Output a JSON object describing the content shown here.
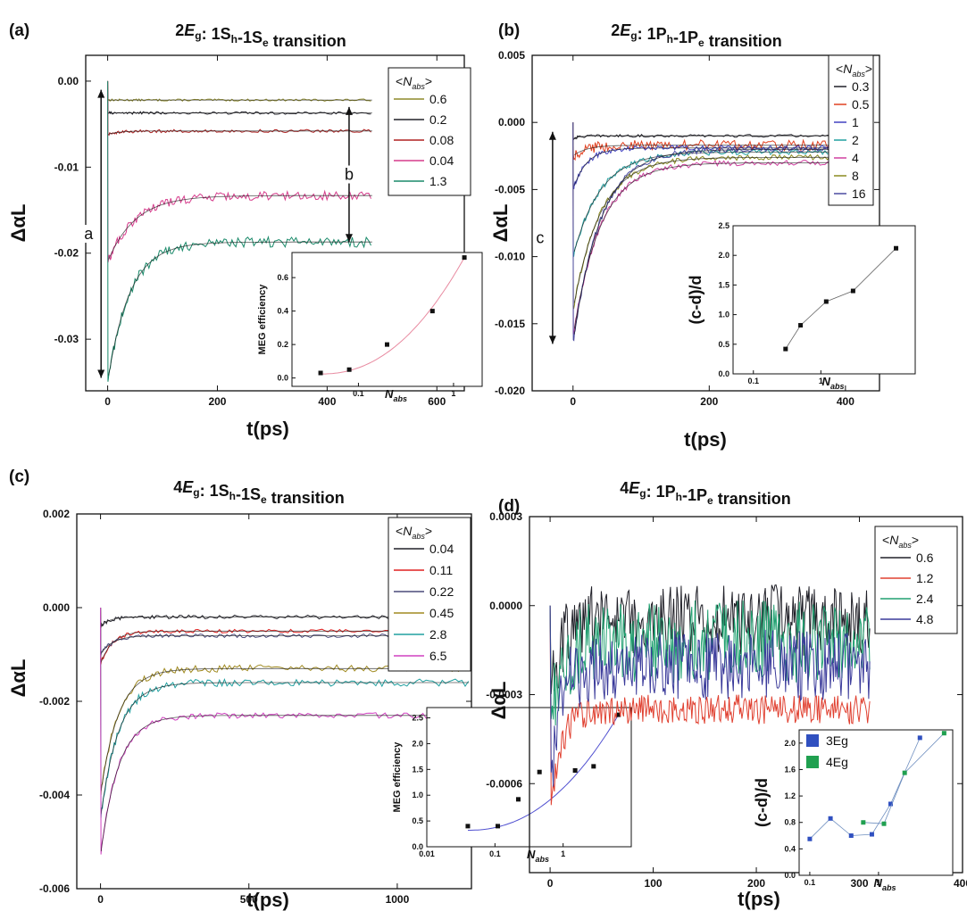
{
  "chart_data": [
    {
      "type": "line",
      "panel_label": "(a)",
      "title": {
        "pre": "2",
        "italic": "E",
        "sub": "g",
        "rest": ": 1S",
        "sub2": "h",
        "rest2": "-1S",
        "sub3": "e",
        "rest3": " transition"
      },
      "xlabel": "t(ps)",
      "ylabel": "ΔαL",
      "xlim": [
        -40,
        650
      ],
      "ylim": [
        -0.036,
        0.003
      ],
      "xticks": [
        0,
        200,
        400,
        600
      ],
      "xtick_labels": [
        "0",
        "200",
        "400",
        "600"
      ],
      "yticks": [
        0.0,
        -0.01,
        -0.02,
        -0.03
      ],
      "ytick_labels": [
        "0.00",
        "-0.01",
        "-0.02",
        "-0.03"
      ],
      "legend_title": "<N_abs>",
      "legend_loc": "top-right",
      "series": [
        {
          "name": "0.6",
          "color": "#8d8a2a",
          "initial": -0.0022,
          "plateau": -0.0022,
          "tau": 20,
          "noise": 0.00012,
          "tmax": 480
        },
        {
          "name": "0.2",
          "color": "#202028",
          "initial": -0.0037,
          "plateau": -0.0037,
          "tau": 20,
          "noise": 0.00015,
          "tmax": 480
        },
        {
          "name": "0.08",
          "color": "#b02020",
          "initial": -0.0062,
          "plateau": -0.0058,
          "tau": 20,
          "noise": 0.00018,
          "tmax": 480
        },
        {
          "name": "0.04",
          "color": "#d63c8c",
          "initial": -0.021,
          "plateau": -0.0133,
          "tau": 50,
          "noise": 0.0005,
          "tmax": 480
        },
        {
          "name": "1.3",
          "color": "#1a8a6a",
          "initial": -0.035,
          "plateau": -0.0187,
          "tau": 40,
          "noise": 0.0006,
          "tmax": 480
        }
      ],
      "annotations": [
        {
          "text": "a",
          "from": -0.001,
          "to": -0.0345,
          "xval": -12
        },
        {
          "text": "b",
          "from": -0.003,
          "to": -0.0187,
          "xval": 440
        }
      ],
      "inset": {
        "ylabel": "MEG efficiency",
        "xlabel": "N_abs",
        "xscale": "log",
        "xlim": [
          0.02,
          2
        ],
        "ylim": [
          -0.05,
          0.75
        ],
        "xticks": [
          0.1,
          1
        ],
        "xtick_labels": [
          "0.1",
          "1"
        ],
        "yticks": [
          0.0,
          0.2,
          0.4,
          0.6
        ],
        "ytick_labels": [
          "0.0",
          "0.2",
          "0.4",
          "0.6"
        ],
        "points": [
          [
            0.04,
            0.03
          ],
          [
            0.08,
            0.05
          ],
          [
            0.2,
            0.2
          ],
          [
            0.6,
            0.4
          ],
          [
            1.3,
            0.72
          ]
        ],
        "fit_color": "#e88aa0"
      }
    },
    {
      "type": "line",
      "panel_label": "(b)",
      "title": {
        "pre": "2",
        "italic": "E",
        "sub": "g",
        "rest": ": 1P",
        "sub2": "h",
        "rest2": "-1P",
        "sub3": "e",
        "rest3": " transition"
      },
      "xlabel": "t(ps)",
      "ylabel": "ΔαL",
      "xlim": [
        -60,
        450
      ],
      "ylim": [
        -0.02,
        0.005
      ],
      "xticks": [
        0,
        200,
        400
      ],
      "xtick_labels": [
        "0",
        "200",
        "400"
      ],
      "yticks": [
        0.005,
        0.0,
        -0.005,
        -0.01,
        -0.015,
        -0.02
      ],
      "ytick_labels": [
        "0.005",
        "0.000",
        "-0.005",
        "-0.010",
        "-0.015",
        "-0.020"
      ],
      "legend_title": "<N_abs>",
      "legend_loc": "top-right",
      "series": [
        {
          "name": "0.3",
          "color": "#202028",
          "initial": -0.0012,
          "plateau": -0.001,
          "tau": 10,
          "noise": 0.0001,
          "tmax": 410
        },
        {
          "name": "0.5",
          "color": "#e04020",
          "initial": -0.0025,
          "plateau": -0.0017,
          "tau": 20,
          "noise": 0.0004,
          "tmax": 410
        },
        {
          "name": "1",
          "color": "#4040c0",
          "initial": -0.005,
          "plateau": -0.0019,
          "tau": 20,
          "noise": 0.0002,
          "tmax": 410
        },
        {
          "name": "2",
          "color": "#20a0a0",
          "initial": -0.01,
          "plateau": -0.0022,
          "tau": 40,
          "noise": 0.0002,
          "tmax": 410
        },
        {
          "name": "4",
          "color": "#d040a0",
          "initial": -0.016,
          "plateau": -0.003,
          "tau": 40,
          "noise": 0.0002,
          "tmax": 410
        },
        {
          "name": "8",
          "color": "#8a8a20",
          "initial": -0.014,
          "plateau": -0.0026,
          "tau": 40,
          "noise": 0.0002,
          "tmax": 410
        },
        {
          "name": "16",
          "color": "#4a4aa0",
          "initial": -0.0165,
          "plateau": -0.002,
          "tau": 40,
          "noise": 0.0002,
          "tmax": 410
        }
      ],
      "annotations": [
        {
          "text": "c",
          "from": -0.0007,
          "to": -0.0165,
          "xval": -30
        },
        {
          "text": "d",
          "from": -0.001,
          "to": -0.003,
          "xval": 410
        }
      ],
      "inset": {
        "ylabel": "(c-d)/d",
        "xlabel": "N_abs",
        "xscale": "log",
        "xlim": [
          0.05,
          25
        ],
        "ylim": [
          0.0,
          2.5
        ],
        "xticks": [
          0.1,
          1
        ],
        "xtick_labels": [
          "0.1",
          "1"
        ],
        "yticks": [
          0.0,
          0.5,
          1.0,
          1.5,
          2.0,
          2.5
        ],
        "ytick_labels": [
          "0.0",
          "0.5",
          "1.0",
          "1.5",
          "2.0",
          "2.5"
        ],
        "points": [
          [
            0.3,
            0.42
          ],
          [
            0.5,
            0.82
          ],
          [
            1.2,
            1.22
          ],
          [
            3,
            1.4
          ],
          [
            13,
            2.12
          ]
        ],
        "connect": true
      }
    },
    {
      "type": "line",
      "panel_label": "(c)",
      "title": {
        "pre": "4",
        "italic": "E",
        "sub": "g",
        "rest": ": 1S",
        "sub2": "h",
        "rest2": "-1S",
        "sub3": "e",
        "rest3": " transition"
      },
      "xlabel": "t(ps)",
      "ylabel": "ΔαL",
      "xlim": [
        -80,
        1250
      ],
      "ylim": [
        -0.006,
        0.002
      ],
      "xticks": [
        0,
        500,
        1000
      ],
      "xtick_labels": [
        "0",
        "500",
        "1000"
      ],
      "yticks": [
        0.002,
        0.0,
        -0.002,
        -0.004,
        -0.006
      ],
      "ytick_labels": [
        "0.002",
        "0.000",
        "-0.002",
        "-0.004",
        "-0.006"
      ],
      "legend_title": "<N_abs>",
      "legend_loc": "top-right",
      "series": [
        {
          "name": "0.04",
          "color": "#202028",
          "initial": -0.0004,
          "plateau": -0.0002,
          "tau": 30,
          "noise": 4e-05,
          "tmax": 1240
        },
        {
          "name": "0.11",
          "color": "#e02020",
          "initial": -0.0012,
          "plateau": -0.0005,
          "tau": 40,
          "noise": 4e-05,
          "tmax": 1240
        },
        {
          "name": "0.22",
          "color": "#4a4a7a",
          "initial": -0.001,
          "plateau": -0.0006,
          "tau": 40,
          "noise": 4e-05,
          "tmax": 1240
        },
        {
          "name": "0.45",
          "color": "#a08a20",
          "initial": -0.004,
          "plateau": -0.0013,
          "tau": 60,
          "noise": 8e-05,
          "tmax": 1240
        },
        {
          "name": "2.8",
          "color": "#20a0a0",
          "initial": -0.0045,
          "plateau": -0.0016,
          "tau": 60,
          "noise": 8e-05,
          "tmax": 1240
        },
        {
          "name": "6.5",
          "color": "#d040c0",
          "initial": -0.0053,
          "plateau": -0.0023,
          "tau": 60,
          "noise": 6e-05,
          "tmax": 1240
        }
      ],
      "inset": {
        "ylabel": "MEG efficiency",
        "xlabel": "N_abs",
        "xscale": "log",
        "xlim": [
          0.01,
          10
        ],
        "ylim": [
          0.0,
          2.7
        ],
        "xticks": [
          0.01,
          0.1,
          1
        ],
        "xtick_labels": [
          "0.01",
          "0.1",
          "1"
        ],
        "yticks": [
          0.0,
          0.5,
          1.0,
          1.5,
          2.0,
          2.5
        ],
        "ytick_labels": [
          "0.0",
          "0.5",
          "1.0",
          "1.5",
          "2.0",
          "2.5"
        ],
        "points": [
          [
            0.04,
            0.4
          ],
          [
            0.11,
            0.4
          ],
          [
            0.22,
            0.92
          ],
          [
            0.45,
            1.45
          ],
          [
            1.5,
            1.48
          ],
          [
            2.8,
            1.56
          ],
          [
            6.5,
            2.56
          ]
        ],
        "fit_color": "#5050d0"
      }
    },
    {
      "type": "line",
      "panel_label": "(d)",
      "title": {
        "pre": "4",
        "italic": "E",
        "sub": "g",
        "rest": ": 1P",
        "sub2": "h",
        "rest2": "-1P",
        "sub3": "e",
        "rest3": " transition"
      },
      "xlabel": "t(ps)",
      "ylabel": "ΔαL",
      "xlim": [
        -20,
        400
      ],
      "ylim": [
        -0.0009,
        0.0003
      ],
      "xticks": [
        0,
        100,
        200,
        300,
        400
      ],
      "xtick_labels": [
        "0",
        "100",
        "200",
        "300",
        "400"
      ],
      "yticks": [
        0.0003,
        0.0,
        -0.0003,
        -0.0006
      ],
      "ytick_labels": [
        "0.0003",
        "0.0000",
        "-0.0003",
        "-0.0006"
      ],
      "legend_title": "<N_abs>",
      "legend_loc": "top-right",
      "series": [
        {
          "name": "0.6",
          "color": "#202028",
          "initial": -0.0003,
          "plateau": -5e-05,
          "tau": 10,
          "noise": 0.00012,
          "tmax": 310
        },
        {
          "name": "1.2",
          "color": "#e04030",
          "initial": -0.0007,
          "plateau": -0.00035,
          "tau": 10,
          "noise": 5e-05,
          "tmax": 310
        },
        {
          "name": "2.4",
          "color": "#20a070",
          "initial": -0.0004,
          "plateau": -0.00012,
          "tau": 10,
          "noise": 0.00014,
          "tmax": 310
        },
        {
          "name": "4.8",
          "color": "#3a3a9a",
          "initial": -0.0006,
          "plateau": -0.0002,
          "tau": 10,
          "noise": 0.00012,
          "tmax": 310
        }
      ],
      "inset": {
        "ylabel": "(c-d)/d",
        "xlabel": "N_abs",
        "xscale": "log",
        "xlim": [
          0.07,
          12
        ],
        "ylim": [
          0.0,
          2.2
        ],
        "xticks": [
          0.1,
          1
        ],
        "xtick_labels": [
          "0.1",
          "1"
        ],
        "yticks": [
          0.0,
          0.4,
          0.8,
          1.2,
          1.6,
          2.0
        ],
        "ytick_labels": [
          "0.0",
          "0.4",
          "0.8",
          "1.2",
          "1.6",
          "2.0"
        ],
        "legend": [
          {
            "name": "3Eg",
            "color": "#3050c0"
          },
          {
            "name": "4Eg",
            "color": "#20a050"
          }
        ],
        "series": [
          {
            "name": "3Eg",
            "color": "#3050c0",
            "points": [
              [
                0.1,
                0.55
              ],
              [
                0.2,
                0.86
              ],
              [
                0.4,
                0.6
              ],
              [
                0.8,
                0.62
              ],
              [
                1.5,
                1.08
              ],
              [
                4,
                2.08
              ]
            ]
          },
          {
            "name": "4Eg",
            "color": "#20a050",
            "points": [
              [
                0.6,
                0.8
              ],
              [
                1.2,
                0.78
              ],
              [
                2.4,
                1.55
              ],
              [
                9,
                2.15
              ]
            ]
          }
        ]
      }
    }
  ]
}
